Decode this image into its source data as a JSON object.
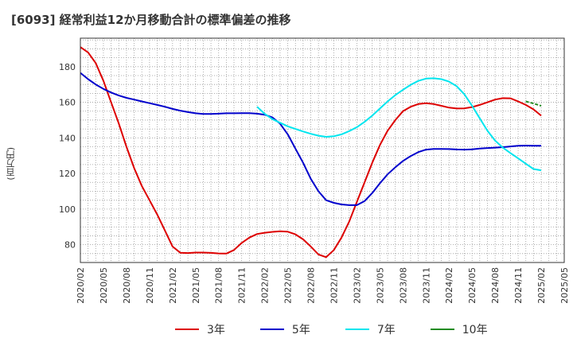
{
  "chart_data": {
    "type": "line",
    "title": "[6093]  経常利益12か月移動合計の標準偏差の推移",
    "ylabel": "(百万円)",
    "xlabel": "",
    "ylim": [
      70,
      196
    ],
    "yticks": [
      80,
      100,
      120,
      140,
      160,
      180
    ],
    "x_range": [
      "2020-02",
      "2025-05"
    ],
    "xticks": [
      "2020/02",
      "2020/05",
      "2020/08",
      "2020/11",
      "2021/02",
      "2021/05",
      "2021/08",
      "2021/11",
      "2022/02",
      "2022/05",
      "2022/08",
      "2022/11",
      "2023/02",
      "2023/05",
      "2023/08",
      "2023/11",
      "2024/02",
      "2024/05",
      "2024/08",
      "2024/11",
      "2025/02",
      "2025/05"
    ],
    "grid": true,
    "legend_position": "bottom",
    "series": [
      {
        "name": "3年",
        "color": "#dd0000",
        "points": [
          [
            "2020-02",
            191
          ],
          [
            "2020-03",
            188
          ],
          [
            "2020-04",
            182
          ],
          [
            "2020-05",
            172
          ],
          [
            "2020-06",
            160
          ],
          [
            "2020-07",
            148
          ],
          [
            "2020-08",
            135
          ],
          [
            "2020-09",
            123
          ],
          [
            "2020-10",
            113
          ],
          [
            "2020-11",
            105
          ],
          [
            "2020-12",
            97
          ],
          [
            "2021-01",
            88
          ],
          [
            "2021-02",
            79
          ],
          [
            "2021-03",
            75.5
          ],
          [
            "2021-04",
            75.3
          ],
          [
            "2021-05",
            75.6
          ],
          [
            "2021-06",
            75.6
          ],
          [
            "2021-07",
            75.4
          ],
          [
            "2021-08",
            75.1
          ],
          [
            "2021-09",
            75
          ],
          [
            "2021-10",
            77
          ],
          [
            "2021-11",
            81
          ],
          [
            "2021-12",
            84
          ],
          [
            "2022-01",
            86
          ],
          [
            "2022-02",
            86.7
          ],
          [
            "2022-03",
            87.2
          ],
          [
            "2022-04",
            87.5
          ],
          [
            "2022-05",
            87.3
          ],
          [
            "2022-06",
            85.8
          ],
          [
            "2022-07",
            83
          ],
          [
            "2022-08",
            79
          ],
          [
            "2022-09",
            74.5
          ],
          [
            "2022-10",
            73
          ],
          [
            "2022-11",
            77
          ],
          [
            "2022-12",
            84
          ],
          [
            "2023-01",
            93
          ],
          [
            "2023-02",
            104
          ],
          [
            "2023-03",
            115
          ],
          [
            "2023-04",
            126
          ],
          [
            "2023-05",
            136
          ],
          [
            "2023-06",
            144
          ],
          [
            "2023-07",
            150
          ],
          [
            "2023-08",
            155
          ],
          [
            "2023-09",
            157.5
          ],
          [
            "2023-10",
            159
          ],
          [
            "2023-11",
            159.5
          ],
          [
            "2023-12",
            159
          ],
          [
            "2024-01",
            158
          ],
          [
            "2024-02",
            157
          ],
          [
            "2024-03",
            156.5
          ],
          [
            "2024-04",
            156.6
          ],
          [
            "2024-05",
            157.3
          ],
          [
            "2024-06",
            158.5
          ],
          [
            "2024-07",
            160
          ],
          [
            "2024-08",
            161.5
          ],
          [
            "2024-09",
            162.3
          ],
          [
            "2024-10",
            162.2
          ],
          [
            "2024-11",
            160.5
          ],
          [
            "2024-12",
            158.5
          ],
          [
            "2025-01",
            156
          ],
          [
            "2025-02",
            152.5
          ]
        ]
      },
      {
        "name": "5年",
        "color": "#0000cc",
        "points": [
          [
            "2020-02",
            176.5
          ],
          [
            "2020-03",
            173
          ],
          [
            "2020-04",
            170
          ],
          [
            "2020-05",
            167.5
          ],
          [
            "2020-06",
            165.5
          ],
          [
            "2020-07",
            163.8
          ],
          [
            "2020-08",
            162.5
          ],
          [
            "2020-09",
            161.5
          ],
          [
            "2020-10",
            160.5
          ],
          [
            "2020-11",
            159.5
          ],
          [
            "2020-12",
            158.5
          ],
          [
            "2021-01",
            157.5
          ],
          [
            "2021-02",
            156.3
          ],
          [
            "2021-03",
            155.3
          ],
          [
            "2021-04",
            154.5
          ],
          [
            "2021-05",
            153.8
          ],
          [
            "2021-06",
            153.4
          ],
          [
            "2021-07",
            153.4
          ],
          [
            "2021-08",
            153.6
          ],
          [
            "2021-09",
            153.8
          ],
          [
            "2021-10",
            153.8
          ],
          [
            "2021-11",
            153.9
          ],
          [
            "2021-12",
            153.9
          ],
          [
            "2022-01",
            153.6
          ],
          [
            "2022-02",
            153
          ],
          [
            "2022-03",
            151.5
          ],
          [
            "2022-04",
            148
          ],
          [
            "2022-05",
            142
          ],
          [
            "2022-06",
            134
          ],
          [
            "2022-07",
            126
          ],
          [
            "2022-08",
            117
          ],
          [
            "2022-09",
            110
          ],
          [
            "2022-10",
            105
          ],
          [
            "2022-11",
            103.5
          ],
          [
            "2022-12",
            102.6
          ],
          [
            "2023-01",
            102.2
          ],
          [
            "2023-02",
            102.2
          ],
          [
            "2023-03",
            104.5
          ],
          [
            "2023-04",
            109
          ],
          [
            "2023-05",
            114.5
          ],
          [
            "2023-06",
            119.5
          ],
          [
            "2023-07",
            123.5
          ],
          [
            "2023-08",
            127
          ],
          [
            "2023-09",
            129.8
          ],
          [
            "2023-10",
            132
          ],
          [
            "2023-11",
            133.4
          ],
          [
            "2023-12",
            133.8
          ],
          [
            "2024-01",
            133.8
          ],
          [
            "2024-02",
            133.7
          ],
          [
            "2024-03",
            133.5
          ],
          [
            "2024-04",
            133.4
          ],
          [
            "2024-05",
            133.6
          ],
          [
            "2024-06",
            134
          ],
          [
            "2024-07",
            134.3
          ],
          [
            "2024-08",
            134.5
          ],
          [
            "2024-09",
            134.8
          ],
          [
            "2024-10",
            135.2
          ],
          [
            "2024-11",
            135.6
          ],
          [
            "2024-12",
            135.7
          ],
          [
            "2025-01",
            135.6
          ],
          [
            "2025-02",
            135.6
          ]
        ]
      },
      {
        "name": "7年",
        "color": "#00e5ee",
        "points": [
          [
            "2022-01",
            157.5
          ],
          [
            "2022-02",
            153.5
          ],
          [
            "2022-03",
            150.5
          ],
          [
            "2022-04",
            148.5
          ],
          [
            "2022-05",
            146.5
          ],
          [
            "2022-06",
            145
          ],
          [
            "2022-07",
            143.6
          ],
          [
            "2022-08",
            142.3
          ],
          [
            "2022-09",
            141.2
          ],
          [
            "2022-10",
            140.6
          ],
          [
            "2022-11",
            140.9
          ],
          [
            "2022-12",
            142
          ],
          [
            "2023-01",
            143.8
          ],
          [
            "2023-02",
            146
          ],
          [
            "2023-03",
            149
          ],
          [
            "2023-04",
            152.5
          ],
          [
            "2023-05",
            156.5
          ],
          [
            "2023-06",
            160.5
          ],
          [
            "2023-07",
            164
          ],
          [
            "2023-08",
            167
          ],
          [
            "2023-09",
            169.8
          ],
          [
            "2023-10",
            172
          ],
          [
            "2023-11",
            173.3
          ],
          [
            "2023-12",
            173.5
          ],
          [
            "2024-01",
            173
          ],
          [
            "2024-02",
            171.6
          ],
          [
            "2024-03",
            169
          ],
          [
            "2024-04",
            164.5
          ],
          [
            "2024-05",
            158
          ],
          [
            "2024-06",
            151
          ],
          [
            "2024-07",
            144
          ],
          [
            "2024-08",
            138.5
          ],
          [
            "2024-09",
            134.5
          ],
          [
            "2024-10",
            131.5
          ],
          [
            "2024-11",
            128.5
          ],
          [
            "2024-12",
            125.5
          ],
          [
            "2025-01",
            122.5
          ],
          [
            "2025-02",
            121.8
          ]
        ]
      },
      {
        "name": "10年",
        "color": "#228b22",
        "points": [
          [
            "2024-12",
            160.5
          ],
          [
            "2025-01",
            159.3
          ],
          [
            "2025-02",
            158
          ]
        ]
      }
    ]
  }
}
